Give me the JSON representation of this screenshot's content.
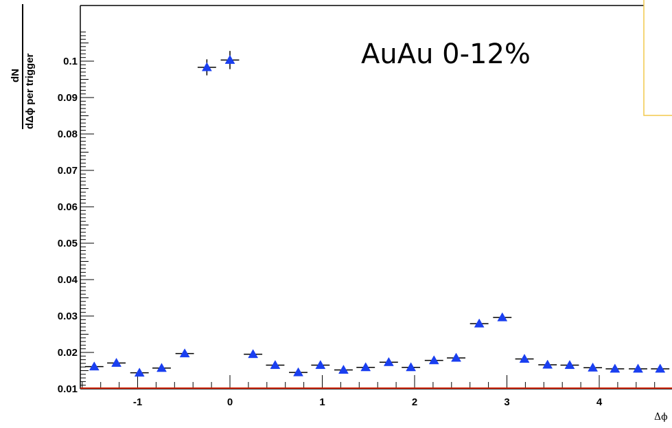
{
  "chart_data": {
    "type": "scatter",
    "title": "AuAu 0-12%",
    "xlabel": "Δϕ",
    "ylabel": {
      "numerator": "dN",
      "denominator": "dΔϕ per trigger"
    },
    "xlim": [
      -1.57,
      4.71
    ],
    "ylim": [
      0.01,
      0.108
    ],
    "x_ticks": [
      -1,
      0,
      1,
      2,
      3,
      4
    ],
    "x_tick_labels": [
      "-1",
      "0",
      "1",
      "2",
      "3",
      "4"
    ],
    "y_ticks": [
      0.01,
      0.02,
      0.03,
      0.04,
      0.05,
      0.06,
      0.07,
      0.08,
      0.09,
      0.1
    ],
    "y_tick_labels": [
      "0.01",
      "0.02",
      "0.03",
      "0.04",
      "0.05",
      "0.06",
      "0.07",
      "0.08",
      "0.09",
      "0.1"
    ],
    "baseline": 0.01,
    "bin_half_width": 0.1,
    "marker": "triangle",
    "colors": {
      "marker": "#1a3ff0",
      "baseline": "#cc2200",
      "legend_border": "#f2c84b"
    },
    "series": [
      {
        "x": [
          -1.47,
          -1.23,
          -0.98,
          -0.74,
          -0.49,
          -0.25,
          0,
          0.25,
          0.49,
          0.74,
          0.98,
          1.23,
          1.47,
          1.72,
          1.96,
          2.21,
          2.45,
          2.7,
          2.95,
          3.19,
          3.44,
          3.68,
          3.93,
          4.17,
          4.42,
          4.66
        ],
        "y": [
          0.0161,
          0.0171,
          0.0144,
          0.0157,
          0.0197,
          0.0983,
          0.1003,
          0.0195,
          0.0165,
          0.0145,
          0.0165,
          0.0152,
          0.0159,
          0.0173,
          0.0159,
          0.0178,
          0.0185,
          0.0279,
          0.0296,
          0.0182,
          0.0166,
          0.0165,
          0.0158,
          0.0155,
          0.0155,
          0.0155
        ],
        "yerr": [
          0.0005,
          0.0005,
          0.0005,
          0.0005,
          0.0005,
          0.0022,
          0.0025,
          0.0005,
          0.0005,
          0.0005,
          0.0005,
          0.0005,
          0.0005,
          0.0005,
          0.0005,
          0.0005,
          0.0005,
          0.0006,
          0.0006,
          0.0005,
          0.0005,
          0.0005,
          0.0005,
          0.0005,
          0.0005,
          0.0005
        ]
      }
    ]
  }
}
